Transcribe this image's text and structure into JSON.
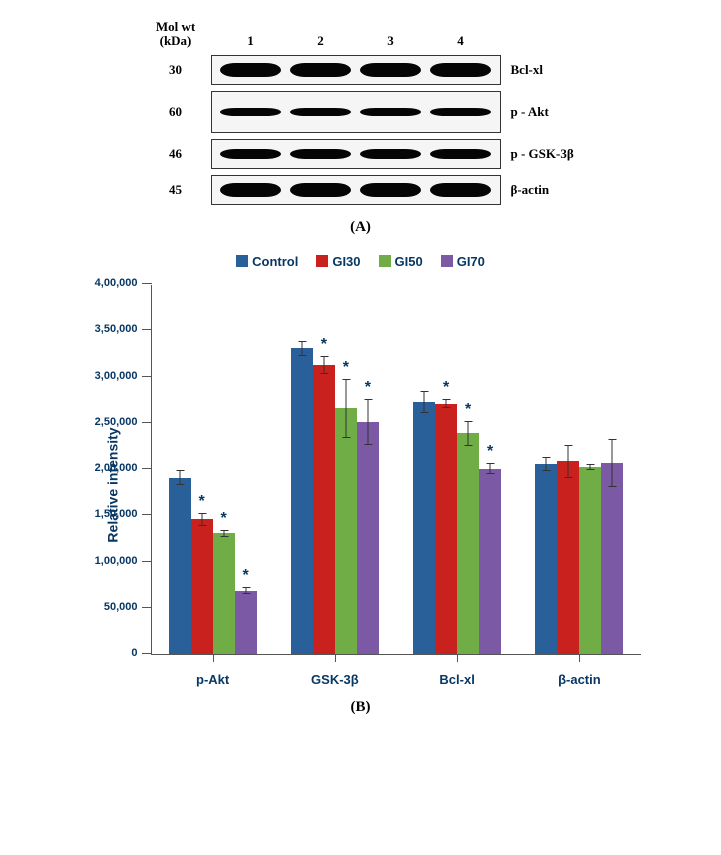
{
  "colors": {
    "control": "#2a6099",
    "gi30": "#c9211e",
    "gi50": "#71ad47",
    "gi70": "#7b59a5",
    "axis_text": "#073763"
  },
  "panelA": {
    "header_molwt": "Mol wt\n(kDa)",
    "lane_numbers": [
      "1",
      "2",
      "3",
      "4"
    ],
    "rows": [
      {
        "mw": "30",
        "protein": "Bcl-xl",
        "strip_h": 30,
        "band_h": 14
      },
      {
        "mw": "60",
        "protein": "p - Akt",
        "strip_h": 42,
        "band_h": 8
      },
      {
        "mw": "46",
        "protein": "p - GSK-3β",
        "strip_h": 30,
        "band_h": 10
      },
      {
        "mw": "45",
        "protein": "β-actin",
        "strip_h": 30,
        "band_h": 14
      }
    ],
    "label": "(A)"
  },
  "panelB": {
    "legend": [
      {
        "name": "Control",
        "colorKey": "control"
      },
      {
        "name": "GI30",
        "colorKey": "gi30"
      },
      {
        "name": "GI50",
        "colorKey": "gi50"
      },
      {
        "name": "GI70",
        "colorKey": "gi70"
      }
    ],
    "y": {
      "title": "Relative intensity",
      "max": 400000,
      "tick_step": 50000,
      "tick_labels": [
        "0",
        "50,000",
        "1,00,000",
        "1,50,000",
        "2,00,000",
        "2,50,000",
        "3,00,000",
        "3,50,000",
        "4,00,000"
      ]
    },
    "groups": [
      {
        "name": "p-Akt",
        "bars": [
          {
            "seriesKey": "control",
            "value": 190000,
            "err": 8000,
            "sig": false
          },
          {
            "seriesKey": "gi30",
            "value": 145000,
            "err": 7000,
            "sig": true
          },
          {
            "seriesKey": "gi50",
            "value": 130000,
            "err": 4000,
            "sig": true
          },
          {
            "seriesKey": "gi70",
            "value": 68000,
            "err": 4000,
            "sig": true
          }
        ]
      },
      {
        "name": "GSK-3β",
        "bars": [
          {
            "seriesKey": "control",
            "value": 330000,
            "err": 8000,
            "sig": false
          },
          {
            "seriesKey": "gi30",
            "value": 312000,
            "err": 10000,
            "sig": true
          },
          {
            "seriesKey": "gi50",
            "value": 265000,
            "err": 32000,
            "sig": true
          },
          {
            "seriesKey": "gi70",
            "value": 250000,
            "err": 25000,
            "sig": true
          }
        ]
      },
      {
        "name": "Bcl-xl",
        "bars": [
          {
            "seriesKey": "control",
            "value": 272000,
            "err": 12000,
            "sig": false
          },
          {
            "seriesKey": "gi30",
            "value": 270000,
            "err": 5000,
            "sig": true
          },
          {
            "seriesKey": "gi50",
            "value": 238000,
            "err": 14000,
            "sig": true
          },
          {
            "seriesKey": "gi70",
            "value": 200000,
            "err": 6000,
            "sig": true
          }
        ]
      },
      {
        "name": "β-actin",
        "bars": [
          {
            "seriesKey": "control",
            "value": 205000,
            "err": 8000,
            "sig": false
          },
          {
            "seriesKey": "gi30",
            "value": 208000,
            "err": 18000,
            "sig": false
          },
          {
            "seriesKey": "gi50",
            "value": 202000,
            "err": 3000,
            "sig": false
          },
          {
            "seriesKey": "gi70",
            "value": 206000,
            "err": 26000,
            "sig": false
          }
        ]
      }
    ],
    "label": "(B)"
  }
}
